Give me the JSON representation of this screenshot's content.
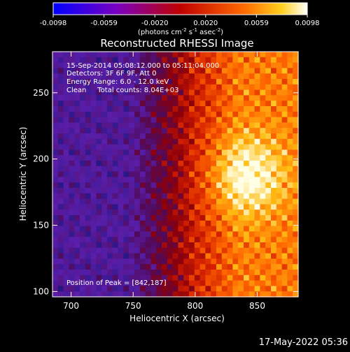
{
  "colorbar": {
    "ticks": [
      "-0.0098",
      "-0.0059",
      "-0.0020",
      "0.0020",
      "0.0059",
      "0.0098"
    ],
    "units_prefix": "(photons cm",
    "units_exp1": "-2",
    "units_mid": " s",
    "units_exp2": "-1",
    "units_mid2": " asec",
    "units_exp3": "-2",
    "units_suffix": ")",
    "range": [
      -0.0098,
      0.0098
    ]
  },
  "annotations": {
    "line1": "15-Sep-2014 05:08:12.000 to 05:11:04.000",
    "line2": "Detectors: 3F 6F 9F, Att 0",
    "line3": "Energy Range: 6.0 - 12.0 keV",
    "line4": "Clean     Total counts: 8.04E+03",
    "peak": "Position of Peak = [842,187]"
  },
  "footer_timestamp": "17-May-2022 05:36",
  "chart_data": {
    "type": "heatmap",
    "title": "Reconstructed RHESSI Image",
    "xlabel": "Heliocentric X (arcsec)",
    "ylabel": "Heliocentric Y (arcsec)",
    "xlim": [
      685,
      883
    ],
    "ylim": [
      96,
      281
    ],
    "x_ticks": [
      700,
      750,
      800,
      850
    ],
    "y_ticks": [
      100,
      150,
      200,
      250
    ],
    "colormap": "rhessi red-temperature (blue-purple to red to yellow-white)",
    "peak_position": [
      842,
      187
    ],
    "brightness_regions": [
      {
        "x_range": [
          685,
          745
        ],
        "level": "low"
      },
      {
        "x_range": [
          745,
          795
        ],
        "level": "medium"
      },
      {
        "x_range": [
          795,
          883
        ],
        "level": "high"
      }
    ]
  }
}
